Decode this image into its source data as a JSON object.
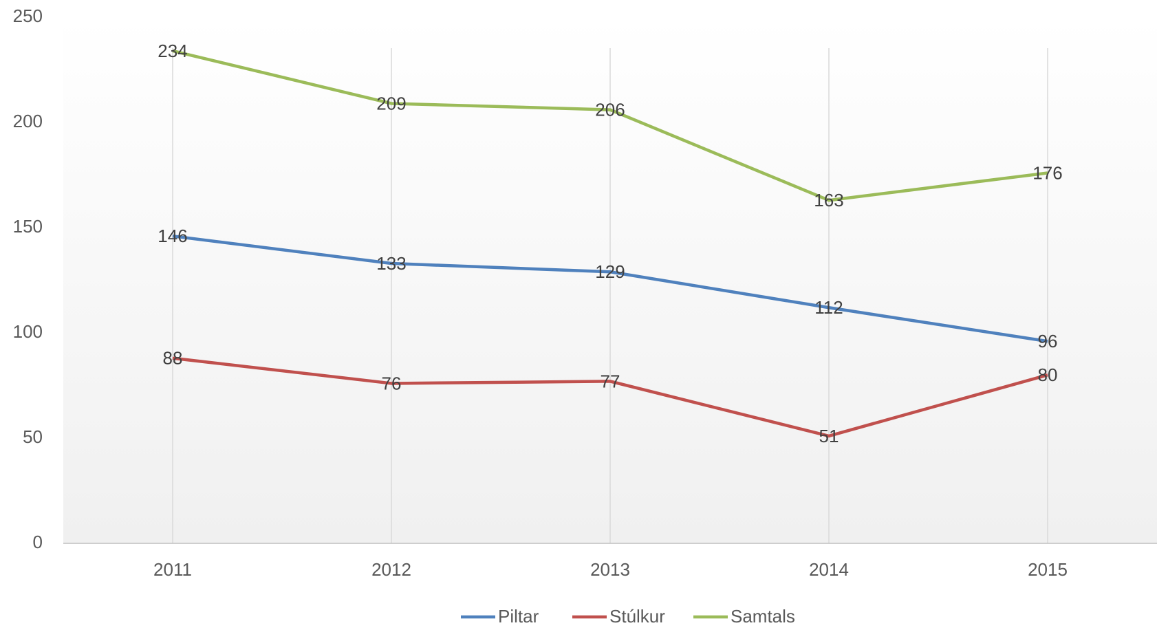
{
  "chart_data": {
    "type": "line",
    "categories": [
      "2011",
      "2012",
      "2013",
      "2014",
      "2015"
    ],
    "series": [
      {
        "name": "Piltar",
        "color": "#4f81bd",
        "values": [
          146,
          133,
          129,
          112,
          96
        ]
      },
      {
        "name": "Stúlkur",
        "color": "#c0504d",
        "values": [
          88,
          76,
          77,
          51,
          80
        ]
      },
      {
        "name": "Samtals",
        "color": "#9bbb59",
        "values": [
          234,
          209,
          206,
          163,
          176
        ]
      }
    ],
    "ylim": [
      0,
      250
    ],
    "yticks": [
      0,
      50,
      100,
      150,
      200,
      250
    ],
    "grid": "x",
    "data_labels": true,
    "legend": "bottom"
  }
}
